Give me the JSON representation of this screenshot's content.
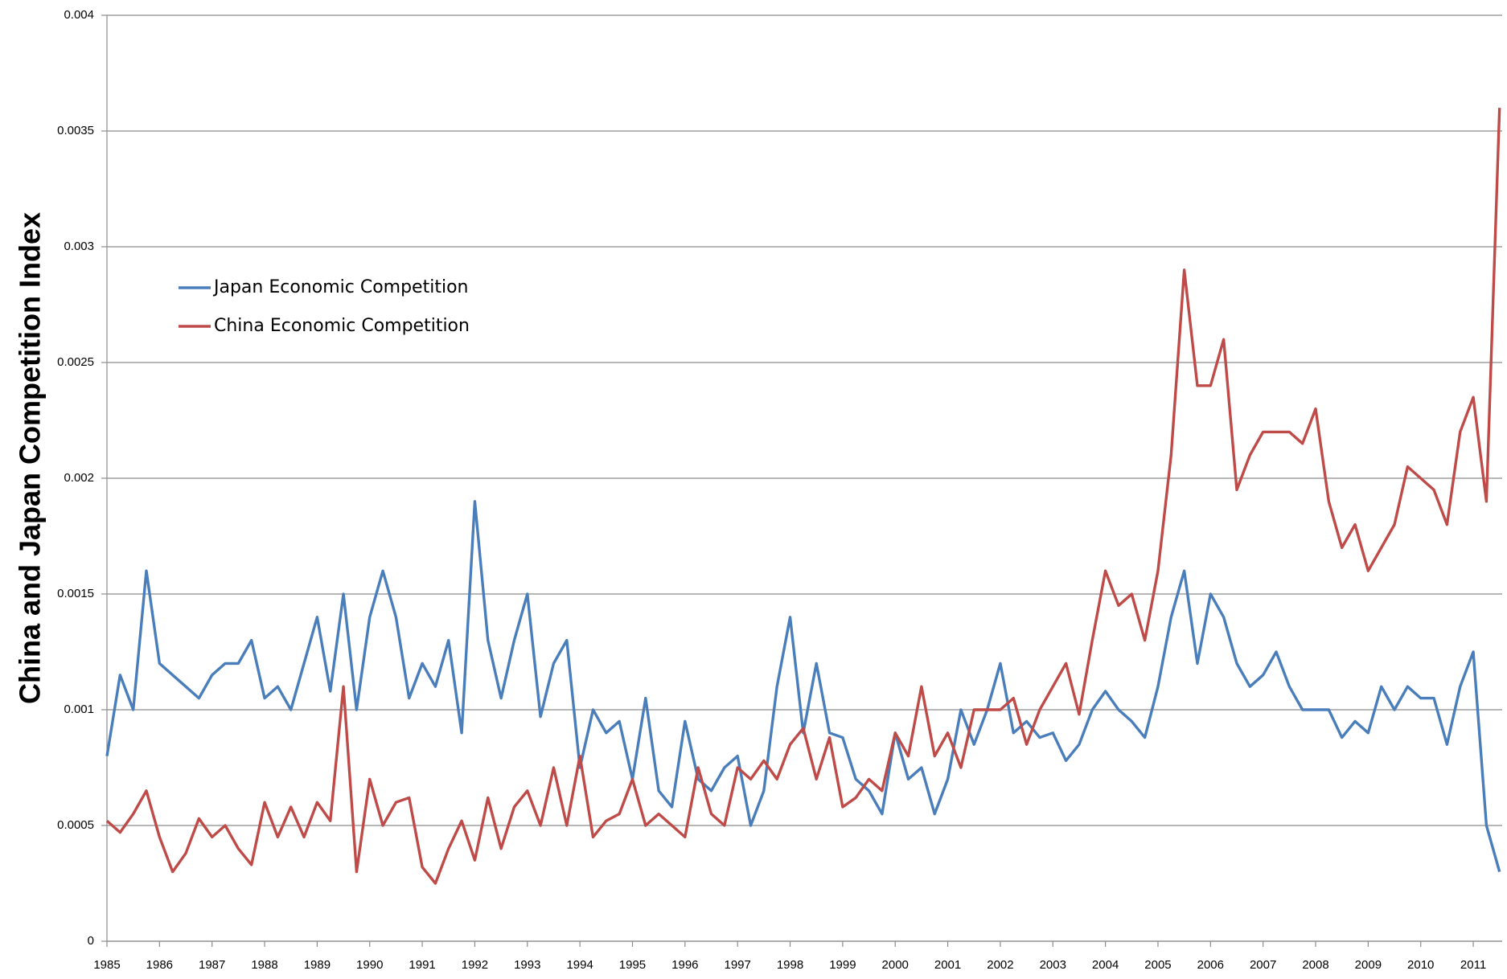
{
  "chart_data": {
    "type": "line",
    "y_label": "China and Japan Competition Index",
    "x": [
      1985,
      1985.25,
      1985.5,
      1985.75,
      1986,
      1986.25,
      1986.5,
      1986.75,
      1987,
      1987.25,
      1987.5,
      1987.75,
      1988,
      1988.25,
      1988.5,
      1988.75,
      1989,
      1989.25,
      1989.5,
      1989.75,
      1990,
      1990.25,
      1990.5,
      1990.75,
      1991,
      1991.25,
      1991.5,
      1991.75,
      1992,
      1992.25,
      1992.5,
      1992.75,
      1993,
      1993.25,
      1993.5,
      1993.75,
      1994,
      1994.25,
      1994.5,
      1994.75,
      1995,
      1995.25,
      1995.5,
      1995.75,
      1996,
      1996.25,
      1996.5,
      1996.75,
      1997,
      1997.25,
      1997.5,
      1997.75,
      1998,
      1998.25,
      1998.5,
      1998.75,
      1999,
      1999.25,
      1999.5,
      1999.75,
      2000,
      2000.25,
      2000.5,
      2000.75,
      2001,
      2001.25,
      2001.5,
      2001.75,
      2002,
      2002.25,
      2002.5,
      2002.75,
      2003,
      2003.25,
      2003.5,
      2003.75,
      2004,
      2004.25,
      2004.5,
      2004.75,
      2005,
      2005.25,
      2005.5,
      2005.75,
      2006,
      2006.25,
      2006.5,
      2006.75,
      2007,
      2007.25,
      2007.5,
      2007.75,
      2008,
      2008.25,
      2008.5,
      2008.75,
      2009,
      2009.25,
      2009.5,
      2009.75,
      2010,
      2010.25,
      2010.5,
      2010.75,
      2011,
      2011.25,
      2011.5
    ],
    "series": [
      {
        "name": "Japan Economic Competition",
        "color": "#4a7ebb",
        "values": [
          0.0008,
          0.00115,
          0.001,
          0.0016,
          0.0012,
          0.00115,
          0.0011,
          0.00105,
          0.00115,
          0.0012,
          0.0012,
          0.0013,
          0.00105,
          0.0011,
          0.001,
          0.0012,
          0.0014,
          0.00108,
          0.0015,
          0.001,
          0.0014,
          0.0016,
          0.0014,
          0.00105,
          0.0012,
          0.0011,
          0.0013,
          0.0009,
          0.0019,
          0.0013,
          0.00105,
          0.0013,
          0.0015,
          0.00097,
          0.0012,
          0.0013,
          0.00075,
          0.001,
          0.0009,
          0.00095,
          0.0007,
          0.00105,
          0.00065,
          0.00058,
          0.00095,
          0.0007,
          0.00065,
          0.00075,
          0.0008,
          0.0005,
          0.00065,
          0.0011,
          0.0014,
          0.0009,
          0.0012,
          0.0009,
          0.00088,
          0.0007,
          0.00065,
          0.00055,
          0.0009,
          0.0007,
          0.00075,
          0.00055,
          0.0007,
          0.001,
          0.00085,
          0.001,
          0.0012,
          0.0009,
          0.00095,
          0.00088,
          0.0009,
          0.00078,
          0.00085,
          0.001,
          0.00108,
          0.001,
          0.00095,
          0.00088,
          0.0011,
          0.0014,
          0.0016,
          0.0012,
          0.0015,
          0.0014,
          0.0012,
          0.0011,
          0.00115,
          0.00125,
          0.0011,
          0.001,
          0.001,
          0.001,
          0.00088,
          0.00095,
          0.0009,
          0.0011,
          0.001,
          0.0011,
          0.00105,
          0.00105,
          0.00085,
          0.0011,
          0.00125,
          0.0005,
          0.0003
        ]
      },
      {
        "name": "China Economic Competition",
        "color": "#be4b48",
        "values": [
          0.00052,
          0.00047,
          0.00055,
          0.00065,
          0.00045,
          0.0003,
          0.00038,
          0.00053,
          0.00045,
          0.0005,
          0.0004,
          0.00033,
          0.0006,
          0.00045,
          0.00058,
          0.00045,
          0.0006,
          0.00052,
          0.0011,
          0.0003,
          0.0007,
          0.0005,
          0.0006,
          0.00062,
          0.00032,
          0.00025,
          0.0004,
          0.00052,
          0.00035,
          0.00062,
          0.0004,
          0.00058,
          0.00065,
          0.0005,
          0.00075,
          0.0005,
          0.0008,
          0.00045,
          0.00052,
          0.00055,
          0.0007,
          0.0005,
          0.00055,
          0.0005,
          0.00045,
          0.00075,
          0.00055,
          0.0005,
          0.00075,
          0.0007,
          0.00078,
          0.0007,
          0.00085,
          0.00092,
          0.0007,
          0.00088,
          0.00058,
          0.00062,
          0.0007,
          0.00065,
          0.0009,
          0.0008,
          0.0011,
          0.0008,
          0.0009,
          0.00075,
          0.001,
          0.001,
          0.001,
          0.00105,
          0.00085,
          0.001,
          0.0011,
          0.0012,
          0.00098,
          0.0013,
          0.0016,
          0.00145,
          0.0015,
          0.0013,
          0.0016,
          0.0021,
          0.0029,
          0.0024,
          0.0024,
          0.0026,
          0.00195,
          0.0021,
          0.0022,
          0.0022,
          0.0022,
          0.00215,
          0.0023,
          0.0019,
          0.0017,
          0.0018,
          0.0016,
          0.0017,
          0.0018,
          0.00205,
          0.002,
          0.00195,
          0.0018,
          0.0022,
          0.00235,
          0.0019,
          0.0036
        ]
      }
    ],
    "xlim": [
      1985,
      2011.55
    ],
    "xticks": [
      1985,
      1986,
      1987,
      1988,
      1989,
      1990,
      1991,
      1992,
      1993,
      1994,
      1995,
      1996,
      1997,
      1998,
      1999,
      2000,
      2001,
      2002,
      2003,
      2004,
      2005,
      2006,
      2007,
      2008,
      2009,
      2010,
      2011
    ],
    "ylim": [
      0,
      0.004
    ],
    "yticks": [
      0,
      0.0005,
      0.001,
      0.0015,
      0.002,
      0.0025,
      0.003,
      0.0035,
      0.004
    ],
    "grid": true,
    "legend": "upper-left"
  }
}
